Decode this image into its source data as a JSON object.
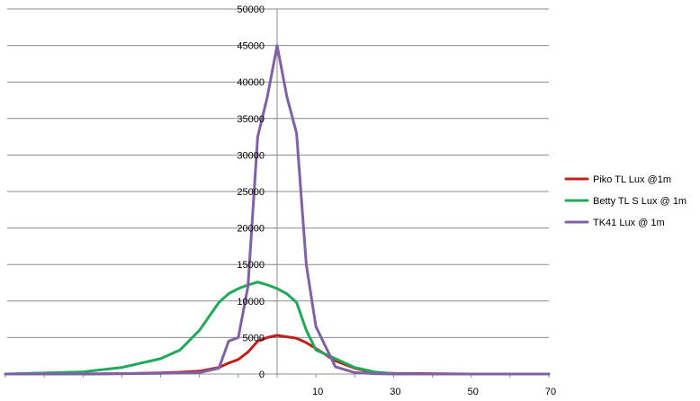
{
  "chart_data": {
    "type": "line",
    "title": "",
    "xlabel": "",
    "ylabel": "",
    "x": [
      -70,
      -50,
      -40,
      -30,
      -25,
      -20,
      -15,
      -12.5,
      -10,
      -7.5,
      -5,
      -2.5,
      0,
      2.5,
      5,
      7.5,
      10,
      15,
      20,
      25,
      30,
      40,
      50,
      70
    ],
    "x_tick_labels": [
      "10",
      "30",
      "50",
      "70"
    ],
    "x_tick_positions": [
      10,
      30,
      50,
      70
    ],
    "ylim": [
      0,
      50000
    ],
    "y_ticks": [
      0,
      5000,
      10000,
      15000,
      20000,
      25000,
      30000,
      35000,
      40000,
      45000,
      50000
    ],
    "y_tick_labels": [
      "0",
      "5000",
      "10000",
      "15000",
      "20000",
      "25000",
      "30000",
      "35000",
      "40000",
      "45000",
      "50000"
    ],
    "grid": "horizontal",
    "legend_position": "right",
    "series": [
      {
        "name": "Piko TL Lux @1m",
        "color": "#c0201b",
        "values": [
          0,
          0,
          50,
          150,
          250,
          400,
          900,
          1500,
          2000,
          3000,
          4500,
          5000,
          5300,
          5100,
          4900,
          4300,
          3500,
          1800,
          800,
          200,
          100,
          50,
          0,
          0
        ]
      },
      {
        "name": "Betty TL S Lux @ 1m",
        "color": "#20a95a",
        "values": [
          0,
          300,
          900,
          2100,
          3300,
          6000,
          9800,
          11000,
          11700,
          12200,
          12600,
          12200,
          11700,
          11000,
          9800,
          6000,
          3300,
          2100,
          900,
          300,
          50,
          0,
          0,
          0
        ]
      },
      {
        "name": "TK41 Lux @ 1m",
        "color": "#8061a8",
        "values": [
          0,
          0,
          50,
          100,
          150,
          200,
          800,
          4500,
          5000,
          12000,
          32500,
          38000,
          45000,
          38000,
          33000,
          15000,
          6500,
          1000,
          200,
          50,
          0,
          0,
          0,
          0
        ]
      }
    ]
  },
  "legend": {
    "items": [
      {
        "label": "Piko TL Lux @1m",
        "color": "#c0201b"
      },
      {
        "label": "Betty TL S Lux @ 1m",
        "color": "#20a95a"
      },
      {
        "label": "TK41 Lux @ 1m",
        "color": "#8061a8"
      }
    ]
  }
}
